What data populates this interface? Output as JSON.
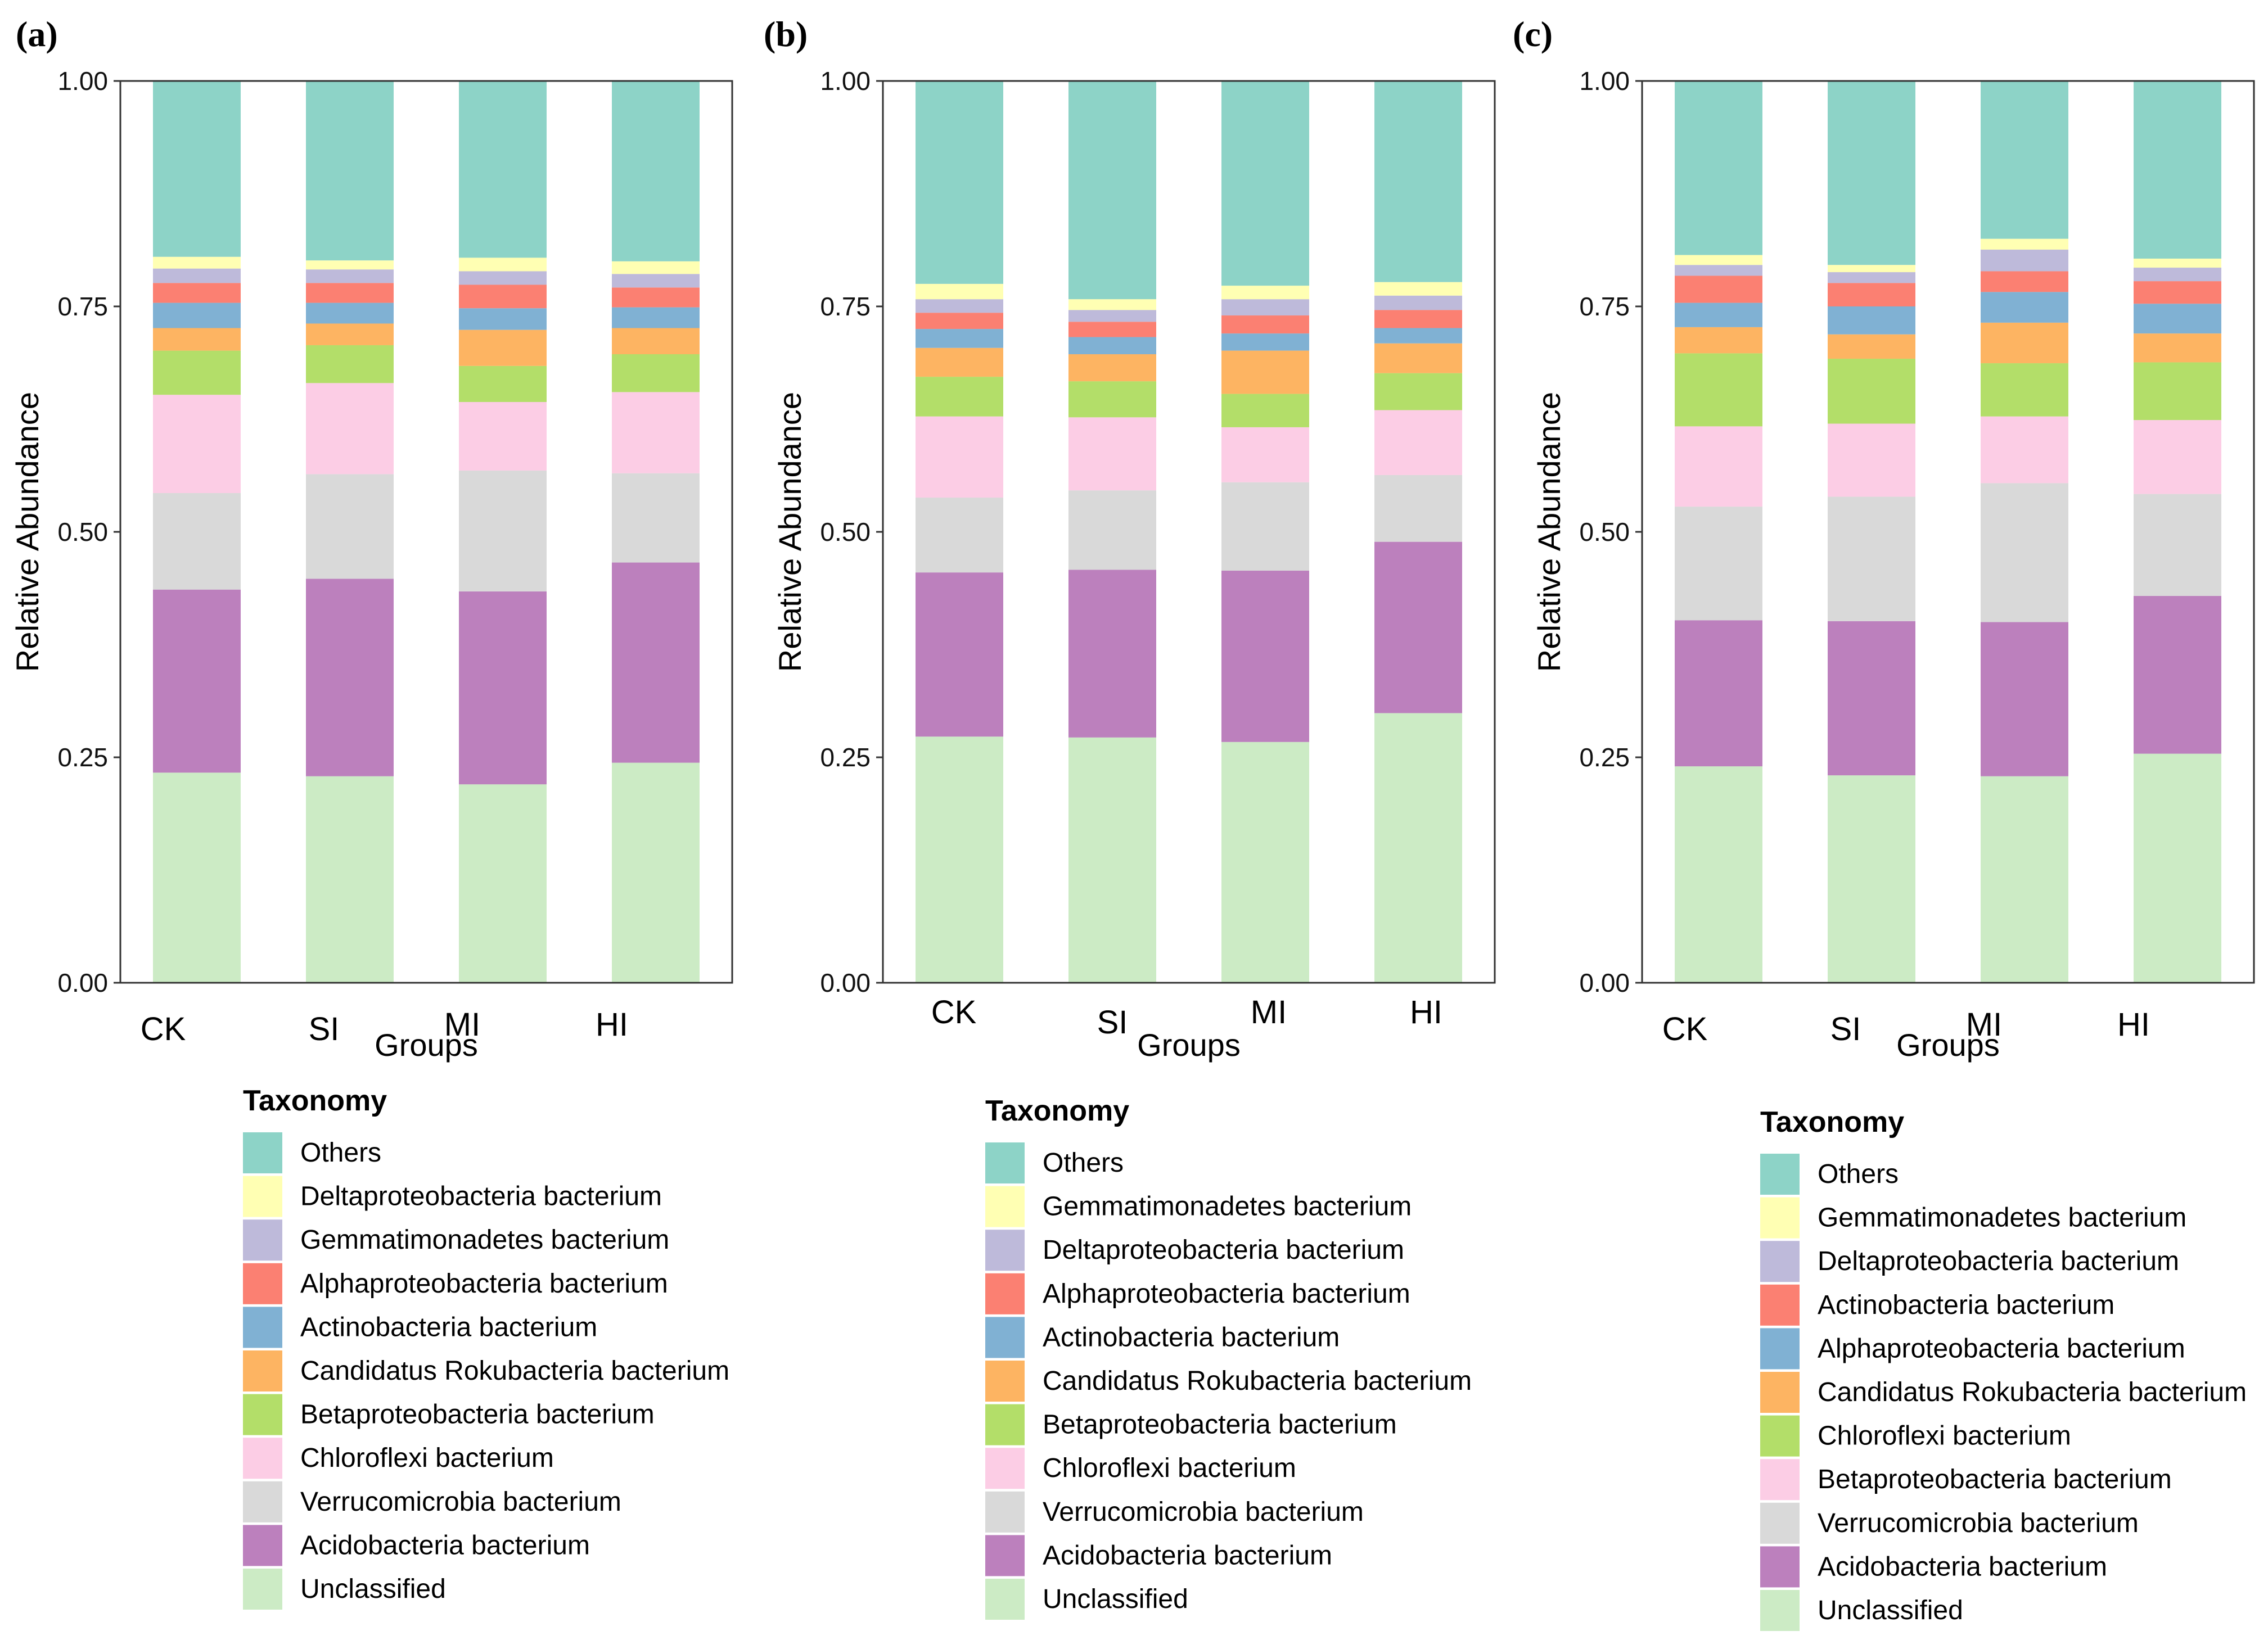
{
  "chart_data": [
    {
      "type": "bar",
      "stacked": true,
      "panel_label": "(a)",
      "xlabel": "Groups",
      "ylabel": "Relative Abundance",
      "ylim": [
        0,
        1
      ],
      "yticks": [
        "0.00",
        "0.25",
        "0.50",
        "0.75",
        "1.00"
      ],
      "categories": [
        "CK",
        "SI",
        "MI",
        "HI"
      ],
      "legend_title": "Taxonomy",
      "series": [
        {
          "name": "Unclassified",
          "color": "#ccebc5",
          "values": [
            0.233,
            0.229,
            0.22,
            0.244
          ]
        },
        {
          "name": "Acidobacteria bacterium",
          "color": "#bc80bd",
          "values": [
            0.203,
            0.219,
            0.214,
            0.222
          ]
        },
        {
          "name": "Verrucomicrobia bacterium",
          "color": "#d9d9d9",
          "values": [
            0.107,
            0.116,
            0.134,
            0.099
          ]
        },
        {
          "name": "Chloroflexi bacterium",
          "color": "#fccde5",
          "values": [
            0.109,
            0.101,
            0.076,
            0.09
          ]
        },
        {
          "name": "Betaproteobacteria bacterium",
          "color": "#b3de69",
          "values": [
            0.049,
            0.042,
            0.04,
            0.042
          ]
        },
        {
          "name": "Candidatus Rokubacteria bacterium",
          "color": "#fdb462",
          "values": [
            0.025,
            0.024,
            0.04,
            0.029
          ]
        },
        {
          "name": "Actinobacteria bacterium",
          "color": "#80b1d3",
          "values": [
            0.028,
            0.023,
            0.024,
            0.023
          ]
        },
        {
          "name": "Alphaproteobacteria bacterium",
          "color": "#fb8072",
          "values": [
            0.022,
            0.022,
            0.026,
            0.022
          ]
        },
        {
          "name": "Gemmatimonadetes bacterium",
          "color": "#bebada",
          "values": [
            0.016,
            0.015,
            0.015,
            0.015
          ]
        },
        {
          "name": "Deltaproteobacteria bacterium",
          "color": "#ffffb3",
          "values": [
            0.013,
            0.01,
            0.015,
            0.014
          ]
        },
        {
          "name": "Others",
          "color": "#8dd3c7",
          "values": [
            0.195,
            0.199,
            0.196,
            0.2
          ]
        }
      ],
      "legend_order": [
        "Others",
        "Deltaproteobacteria bacterium",
        "Gemmatimonadetes bacterium",
        "Alphaproteobacteria bacterium",
        "Actinobacteria bacterium",
        "Candidatus Rokubacteria bacterium",
        "Betaproteobacteria bacterium",
        "Chloroflexi bacterium",
        "Verrucomicrobia bacterium",
        "Acidobacteria bacterium",
        "Unclassified"
      ]
    },
    {
      "type": "bar",
      "stacked": true,
      "panel_label": "(b)",
      "xlabel": "Groups",
      "ylabel": "Relative Abundance",
      "ylim": [
        0,
        1
      ],
      "yticks": [
        "0.00",
        "0.25",
        "0.50",
        "0.75",
        "1.00"
      ],
      "categories": [
        "CK",
        "SI",
        "MI",
        "HI"
      ],
      "legend_title": "Taxonomy",
      "series": [
        {
          "name": "Unclassified",
          "color": "#ccebc5",
          "values": [
            0.273,
            0.272,
            0.267,
            0.299
          ]
        },
        {
          "name": "Acidobacteria bacterium",
          "color": "#bc80bd",
          "values": [
            0.182,
            0.186,
            0.19,
            0.19
          ]
        },
        {
          "name": "Verrucomicrobia bacterium",
          "color": "#d9d9d9",
          "values": [
            0.083,
            0.088,
            0.098,
            0.074
          ]
        },
        {
          "name": "Chloroflexi bacterium",
          "color": "#fccde5",
          "values": [
            0.09,
            0.081,
            0.061,
            0.072
          ]
        },
        {
          "name": "Betaproteobacteria bacterium",
          "color": "#b3de69",
          "values": [
            0.044,
            0.04,
            0.037,
            0.041
          ]
        },
        {
          "name": "Candidatus Rokubacteria bacterium",
          "color": "#fdb462",
          "values": [
            0.032,
            0.03,
            0.048,
            0.033
          ]
        },
        {
          "name": "Actinobacteria bacterium",
          "color": "#80b1d3",
          "values": [
            0.021,
            0.019,
            0.019,
            0.017
          ]
        },
        {
          "name": "Alphaproteobacteria bacterium",
          "color": "#fb8072",
          "values": [
            0.018,
            0.017,
            0.02,
            0.02
          ]
        },
        {
          "name": "Deltaproteobacteria bacterium",
          "color": "#bebada",
          "values": [
            0.015,
            0.013,
            0.018,
            0.016
          ]
        },
        {
          "name": "Gemmatimonadetes bacterium",
          "color": "#ffffb3",
          "values": [
            0.017,
            0.012,
            0.015,
            0.015
          ]
        },
        {
          "name": "Others",
          "color": "#8dd3c7",
          "values": [
            0.225,
            0.242,
            0.227,
            0.223
          ]
        }
      ],
      "legend_order": [
        "Others",
        "Gemmatimonadetes bacterium",
        "Deltaproteobacteria bacterium",
        "Alphaproteobacteria bacterium",
        "Actinobacteria bacterium",
        "Candidatus Rokubacteria bacterium",
        "Betaproteobacteria bacterium",
        "Chloroflexi bacterium",
        "Verrucomicrobia bacterium",
        "Acidobacteria bacterium",
        "Unclassified"
      ]
    },
    {
      "type": "bar",
      "stacked": true,
      "panel_label": "(c)",
      "xlabel": "Groups",
      "ylabel": "Relative Abundance",
      "ylim": [
        0,
        1
      ],
      "yticks": [
        "0.00",
        "0.25",
        "0.50",
        "0.75",
        "1.00"
      ],
      "categories": [
        "CK",
        "SI",
        "MI",
        "HI"
      ],
      "legend_title": "Taxonomy",
      "series": [
        {
          "name": "Unclassified",
          "color": "#ccebc5",
          "values": [
            0.24,
            0.23,
            0.229,
            0.254
          ]
        },
        {
          "name": "Acidobacteria bacterium",
          "color": "#bc80bd",
          "values": [
            0.162,
            0.171,
            0.171,
            0.175
          ]
        },
        {
          "name": "Verrucomicrobia bacterium",
          "color": "#d9d9d9",
          "values": [
            0.126,
            0.138,
            0.154,
            0.113
          ]
        },
        {
          "name": "Betaproteobacteria bacterium",
          "color": "#fccde5",
          "values": [
            0.089,
            0.081,
            0.074,
            0.082
          ]
        },
        {
          "name": "Chloroflexi bacterium",
          "color": "#b3de69",
          "values": [
            0.081,
            0.072,
            0.059,
            0.064
          ]
        },
        {
          "name": "Candidatus Rokubacteria bacterium",
          "color": "#fdb462",
          "values": [
            0.029,
            0.027,
            0.045,
            0.032
          ]
        },
        {
          "name": "Alphaproteobacteria bacterium",
          "color": "#80b1d3",
          "values": [
            0.027,
            0.031,
            0.034,
            0.033
          ]
        },
        {
          "name": "Actinobacteria bacterium",
          "color": "#fb8072",
          "values": [
            0.03,
            0.026,
            0.023,
            0.025
          ]
        },
        {
          "name": "Deltaproteobacteria bacterium",
          "color": "#bebada",
          "values": [
            0.012,
            0.012,
            0.024,
            0.015
          ]
        },
        {
          "name": "Gemmatimonadetes bacterium",
          "color": "#ffffb3",
          "values": [
            0.011,
            0.008,
            0.012,
            0.01
          ]
        },
        {
          "name": "Others",
          "color": "#8dd3c7",
          "values": [
            0.193,
            0.204,
            0.175,
            0.197
          ]
        }
      ],
      "legend_order": [
        "Others",
        "Gemmatimonadetes bacterium",
        "Deltaproteobacteria bacterium",
        "Actinobacteria bacterium",
        "Alphaproteobacteria bacterium",
        "Candidatus Rokubacteria bacterium",
        "Chloroflexi bacterium",
        "Betaproteobacteria bacterium",
        "Verrucomicrobia bacterium",
        "Acidobacteria bacterium",
        "Unclassified"
      ]
    }
  ]
}
